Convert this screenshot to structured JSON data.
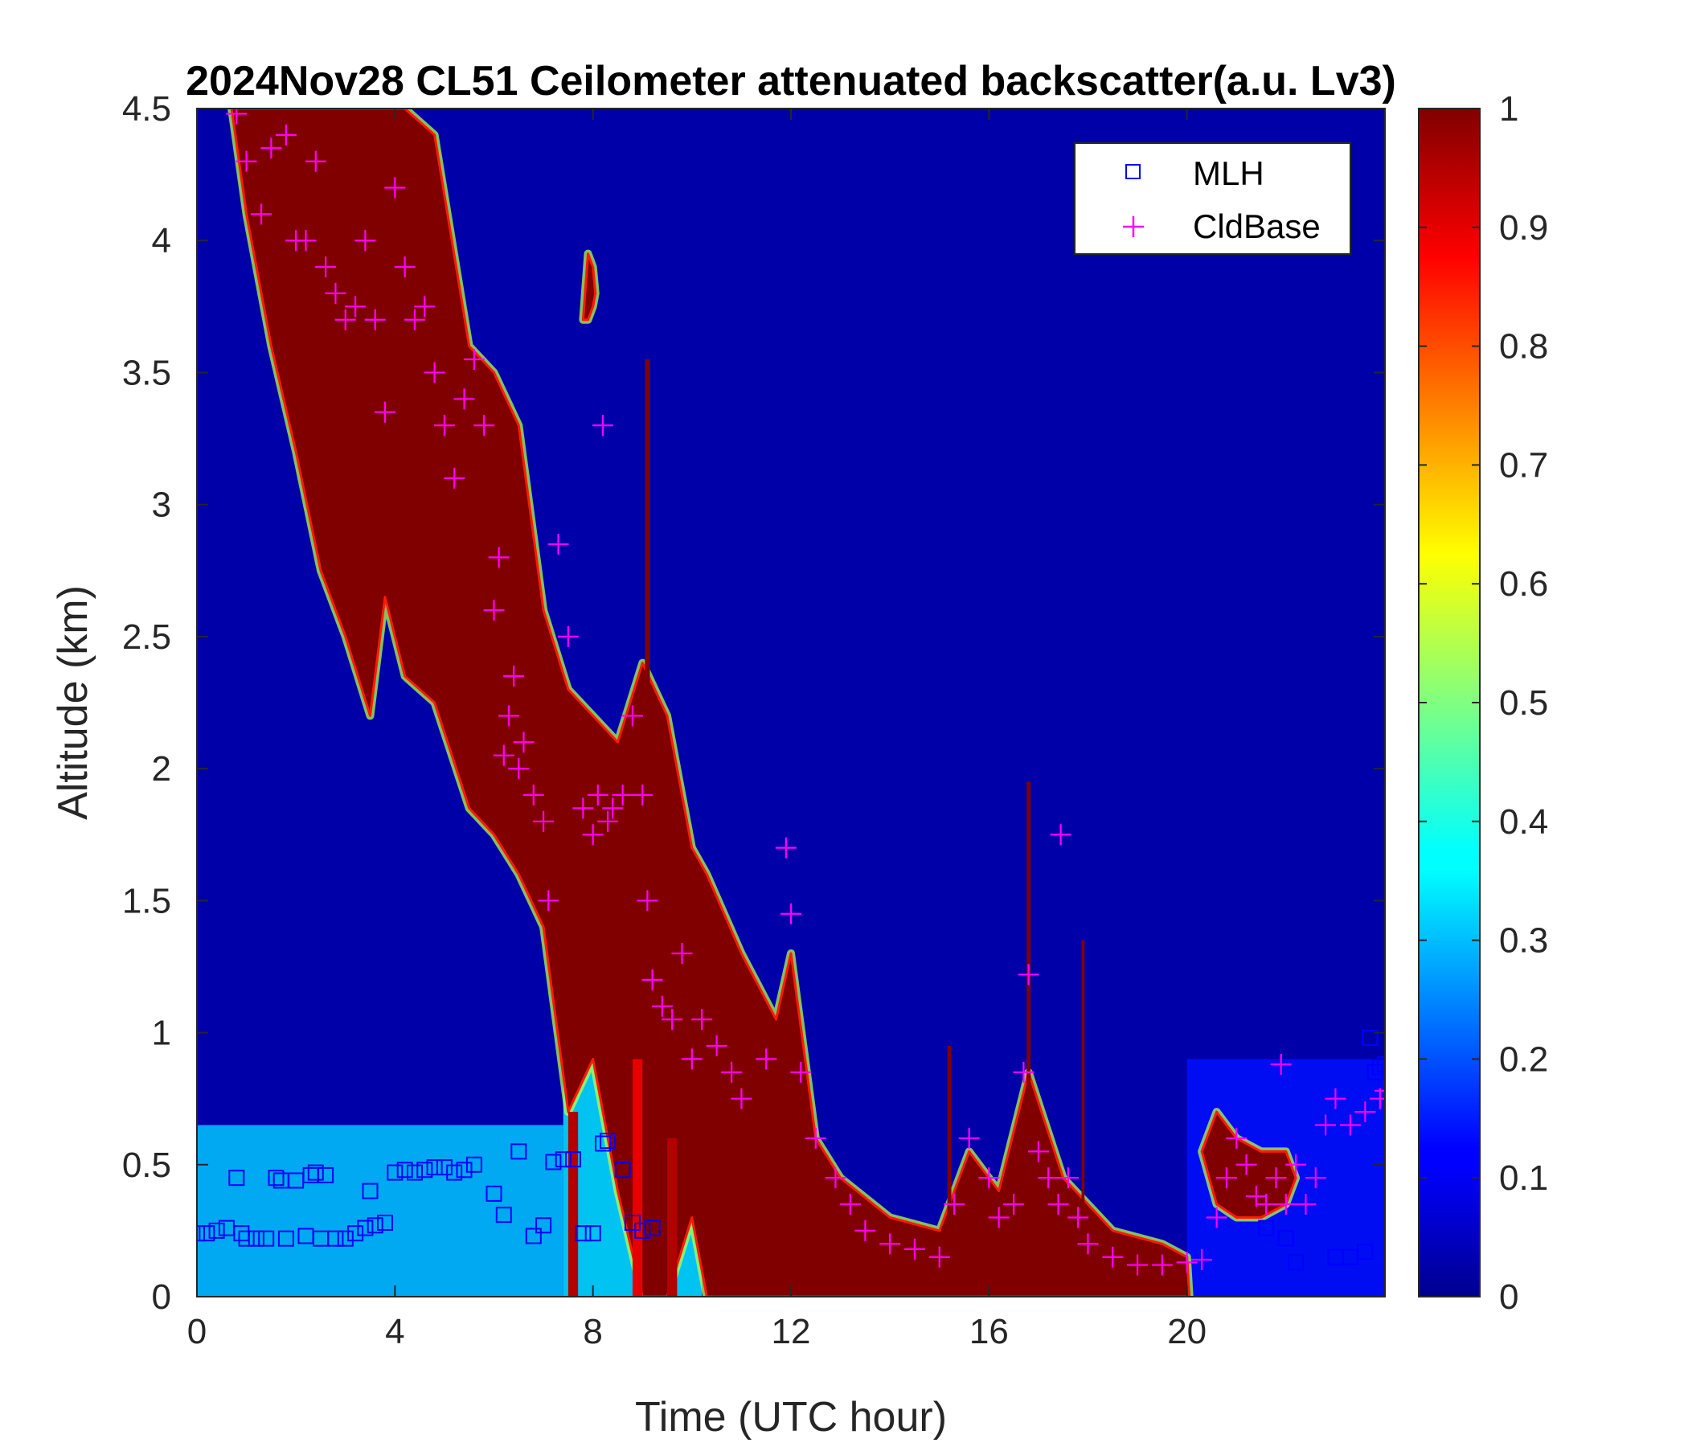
{
  "chart_data": {
    "type": "heatmap",
    "title": "2024Nov28 CL51 Ceilometer attenuated backscatter(a.u. Lv3)",
    "xlabel": "Time (UTC hour)",
    "ylabel": "Altitude (km)",
    "xlim": [
      0,
      24
    ],
    "ylim": [
      0,
      4.5
    ],
    "xticks": [
      0,
      4,
      8,
      12,
      16,
      20
    ],
    "xtick_labels": [
      "0",
      "4",
      "8",
      "12",
      "16",
      "20"
    ],
    "yticks": [
      0,
      0.5,
      1,
      1.5,
      2,
      2.5,
      3,
      3.5,
      4,
      4.5
    ],
    "ytick_labels": [
      "0",
      "0.5",
      "1",
      "1.5",
      "2",
      "2.5",
      "3",
      "3.5",
      "4",
      "4.5"
    ],
    "colorbar": {
      "colormap": "jet",
      "range": [
        0,
        1
      ],
      "ticks": [
        0,
        0.1,
        0.2,
        0.3,
        0.4,
        0.5,
        0.6,
        0.7,
        0.8,
        0.9,
        1
      ],
      "tick_labels": [
        "0",
        "0.1",
        "0.2",
        "0.3",
        "0.4",
        "0.5",
        "0.6",
        "0.7",
        "0.8",
        "0.9",
        "1"
      ]
    },
    "legend": {
      "location": "top-right",
      "entries": [
        {
          "label": "MLH",
          "marker": "square",
          "color": "#0000ff"
        },
        {
          "label": "CldBase",
          "marker": "plus",
          "color": "#ff00ff"
        }
      ]
    },
    "background_value": 0.04,
    "features": [
      {
        "kind": "aerosol_layer",
        "t0": 0,
        "t1": 7.4,
        "z0": 0,
        "z1": 0.65,
        "value": 0.32
      },
      {
        "kind": "aerosol_layer",
        "t0": 7.4,
        "t1": 10.2,
        "z0": 0,
        "z1": 1.1,
        "value": 0.35
      },
      {
        "kind": "aerosol_layer",
        "t0": 20.0,
        "t1": 24,
        "z0": 0,
        "z1": 0.9,
        "value": 0.14
      },
      {
        "kind": "cloud_band",
        "value": 1.0,
        "points": [
          {
            "t": 0.7,
            "lo": 4.5,
            "hi": 4.5
          },
          {
            "t": 1.0,
            "lo": 4.1,
            "hi": 4.5
          },
          {
            "t": 1.5,
            "lo": 3.6,
            "hi": 4.5
          },
          {
            "t": 2.0,
            "lo": 3.2,
            "hi": 4.5
          },
          {
            "t": 2.5,
            "lo": 2.75,
            "hi": 4.5
          },
          {
            "t": 3.0,
            "lo": 2.5,
            "hi": 4.5
          },
          {
            "t": 3.5,
            "lo": 2.2,
            "hi": 4.5
          },
          {
            "t": 3.8,
            "lo": 2.65,
            "hi": 4.5
          },
          {
            "t": 4.2,
            "lo": 2.35,
            "hi": 4.5
          },
          {
            "t": 4.8,
            "lo": 2.25,
            "hi": 4.4
          },
          {
            "t": 5.5,
            "lo": 1.85,
            "hi": 3.6
          },
          {
            "t": 6.0,
            "lo": 1.75,
            "hi": 3.5
          },
          {
            "t": 6.5,
            "lo": 1.6,
            "hi": 3.3
          },
          {
            "t": 7.0,
            "lo": 1.4,
            "hi": 2.6
          },
          {
            "t": 7.5,
            "lo": 0.7,
            "hi": 2.3
          },
          {
            "t": 8.0,
            "lo": 0.9,
            "hi": 2.2
          },
          {
            "t": 8.5,
            "lo": 0.4,
            "hi": 2.1
          },
          {
            "t": 9.0,
            "lo": 0.0,
            "hi": 2.4
          },
          {
            "t": 9.5,
            "lo": 0.0,
            "hi": 2.2
          },
          {
            "t": 10.0,
            "lo": 0.3,
            "hi": 1.7
          },
          {
            "t": 10.3,
            "lo": 0.0,
            "hi": 1.6
          },
          {
            "t": 11.0,
            "lo": 0.0,
            "hi": 1.3
          },
          {
            "t": 11.7,
            "lo": 0.0,
            "hi": 1.05
          },
          {
            "t": 12.0,
            "lo": 0.0,
            "hi": 1.3
          },
          {
            "t": 12.5,
            "lo": 0.0,
            "hi": 0.6
          },
          {
            "t": 13.0,
            "lo": 0.0,
            "hi": 0.45
          },
          {
            "t": 14.0,
            "lo": 0.0,
            "hi": 0.3
          },
          {
            "t": 15.0,
            "lo": 0.0,
            "hi": 0.25
          },
          {
            "t": 15.6,
            "lo": 0.0,
            "hi": 0.55
          },
          {
            "t": 16.2,
            "lo": 0.0,
            "hi": 0.4
          },
          {
            "t": 16.8,
            "lo": 0.0,
            "hi": 0.85
          },
          {
            "t": 17.5,
            "lo": 0.0,
            "hi": 0.45
          },
          {
            "t": 18.5,
            "lo": 0.0,
            "hi": 0.25
          },
          {
            "t": 19.5,
            "lo": 0.0,
            "hi": 0.2
          },
          {
            "t": 20.0,
            "lo": 0.0,
            "hi": 0.15
          },
          {
            "t": 20.05,
            "lo": 0.0,
            "hi": 0.0
          }
        ]
      },
      {
        "kind": "cloud_band",
        "value": 1.0,
        "points": [
          {
            "t": 7.8,
            "lo": 3.7,
            "hi": 3.7
          },
          {
            "t": 7.9,
            "lo": 3.7,
            "hi": 3.95
          },
          {
            "t": 8.0,
            "lo": 3.75,
            "hi": 3.9
          },
          {
            "t": 8.05,
            "lo": 3.8,
            "hi": 3.8
          }
        ]
      },
      {
        "kind": "cloud_band",
        "value": 1.0,
        "points": [
          {
            "t": 20.3,
            "lo": 0.55,
            "hi": 0.55
          },
          {
            "t": 20.6,
            "lo": 0.35,
            "hi": 0.7
          },
          {
            "t": 21.0,
            "lo": 0.3,
            "hi": 0.6
          },
          {
            "t": 21.5,
            "lo": 0.3,
            "hi": 0.55
          },
          {
            "t": 22.0,
            "lo": 0.35,
            "hi": 0.55
          },
          {
            "t": 22.2,
            "lo": 0.45,
            "hi": 0.45
          }
        ]
      },
      {
        "kind": "spike",
        "t": 16.8,
        "z0": 0.3,
        "z1": 1.95,
        "width": 0.08,
        "value": 1.0
      },
      {
        "kind": "spike",
        "t": 15.2,
        "z0": 0.2,
        "z1": 0.95,
        "width": 0.08,
        "value": 1.0
      },
      {
        "kind": "spike",
        "t": 17.9,
        "z0": 0.2,
        "z1": 1.35,
        "width": 0.06,
        "value": 1.0
      },
      {
        "kind": "spike",
        "t": 9.1,
        "z0": 2.2,
        "z1": 3.55,
        "width": 0.1,
        "value": 1.0
      },
      {
        "kind": "spike",
        "t": 7.6,
        "z0": 0.0,
        "z1": 0.7,
        "width": 0.2,
        "value": 0.95
      },
      {
        "kind": "spike",
        "t": 8.9,
        "z0": 0.0,
        "z1": 0.9,
        "width": 0.2,
        "value": 0.9
      },
      {
        "kind": "spike",
        "t": 9.6,
        "z0": 0.0,
        "z1": 0.6,
        "width": 0.2,
        "value": 0.95
      }
    ],
    "series": [
      {
        "name": "MLH",
        "marker": "square",
        "color": "#0000ff",
        "x": [
          0.0,
          0.2,
          0.4,
          0.6,
          0.8,
          0.9,
          1.0,
          1.2,
          1.4,
          1.6,
          1.7,
          1.8,
          2.0,
          2.2,
          2.3,
          2.4,
          2.5,
          2.6,
          2.8,
          3.0,
          3.2,
          3.4,
          3.5,
          3.6,
          3.8,
          4.0,
          4.2,
          4.4,
          4.6,
          4.8,
          5.0,
          5.2,
          5.4,
          5.6,
          6.0,
          6.2,
          6.5,
          6.8,
          7.0,
          7.2,
          7.4,
          7.6,
          7.8,
          8.0,
          8.2,
          8.3,
          8.6,
          8.8,
          9.0,
          9.2,
          21.6,
          22.0,
          22.2,
          23.0,
          23.3,
          23.6,
          23.8,
          23.9,
          24.0,
          23.7
        ],
        "y": [
          0.24,
          0.24,
          0.25,
          0.26,
          0.45,
          0.24,
          0.22,
          0.22,
          0.22,
          0.45,
          0.44,
          0.22,
          0.44,
          0.23,
          0.46,
          0.47,
          0.22,
          0.46,
          0.22,
          0.22,
          0.24,
          0.26,
          0.4,
          0.27,
          0.28,
          0.47,
          0.48,
          0.47,
          0.48,
          0.49,
          0.49,
          0.47,
          0.48,
          0.5,
          0.39,
          0.31,
          0.55,
          0.23,
          0.27,
          0.51,
          0.52,
          0.52,
          0.24,
          0.24,
          0.58,
          0.59,
          0.48,
          0.28,
          0.25,
          0.26,
          0.26,
          0.22,
          0.13,
          0.15,
          0.15,
          0.17,
          0.85,
          0.87,
          0.88,
          0.98
        ]
      },
      {
        "name": "CldBase",
        "marker": "plus",
        "color": "#ff00ff",
        "x": [
          0.8,
          1.0,
          1.3,
          1.5,
          1.8,
          2.0,
          2.2,
          2.4,
          2.6,
          2.8,
          3.0,
          3.2,
          3.4,
          3.6,
          3.8,
          4.0,
          4.2,
          4.4,
          4.6,
          4.8,
          5.0,
          5.2,
          5.4,
          5.6,
          5.8,
          6.0,
          6.1,
          6.2,
          6.3,
          6.4,
          6.5,
          6.6,
          6.8,
          7.0,
          7.1,
          7.3,
          7.5,
          7.8,
          8.0,
          8.1,
          8.2,
          8.3,
          8.4,
          8.6,
          8.8,
          9.0,
          9.1,
          9.2,
          9.4,
          9.6,
          9.8,
          10.0,
          10.2,
          10.5,
          10.8,
          11.0,
          11.5,
          11.9,
          12.0,
          12.2,
          12.5,
          12.9,
          13.2,
          13.5,
          14.0,
          14.5,
          15.0,
          15.3,
          15.6,
          16.0,
          16.2,
          16.5,
          16.7,
          16.8,
          17.0,
          17.2,
          17.4,
          17.45,
          17.6,
          17.8,
          18.0,
          18.5,
          19.0,
          19.5,
          20.0,
          20.3,
          20.6,
          20.8,
          21.0,
          21.2,
          21.4,
          21.6,
          21.8,
          21.9,
          22.0,
          22.2,
          22.4,
          22.6,
          22.8,
          23.0,
          23.3,
          23.6,
          23.9,
          24.0
        ],
        "y": [
          4.48,
          4.3,
          4.1,
          4.35,
          4.4,
          4.0,
          4.0,
          4.3,
          3.9,
          3.8,
          3.7,
          3.75,
          4.0,
          3.7,
          3.35,
          4.2,
          3.9,
          3.7,
          3.75,
          3.5,
          3.3,
          3.1,
          3.4,
          3.55,
          3.3,
          2.6,
          2.8,
          2.05,
          2.2,
          2.35,
          2.0,
          2.1,
          1.9,
          1.8,
          1.5,
          2.85,
          2.5,
          1.85,
          1.75,
          1.9,
          3.3,
          1.8,
          1.85,
          1.9,
          2.2,
          1.9,
          1.5,
          1.2,
          1.1,
          1.05,
          1.3,
          0.9,
          1.05,
          0.95,
          0.85,
          0.75,
          0.9,
          1.7,
          1.45,
          0.85,
          0.6,
          0.45,
          0.35,
          0.25,
          0.2,
          0.18,
          0.15,
          0.35,
          0.6,
          0.45,
          0.3,
          0.35,
          0.85,
          1.22,
          0.55,
          0.45,
          0.35,
          1.75,
          0.45,
          0.3,
          0.2,
          0.15,
          0.12,
          0.12,
          0.13,
          0.14,
          0.3,
          0.45,
          0.6,
          0.5,
          0.38,
          0.35,
          0.45,
          0.88,
          0.35,
          0.5,
          0.35,
          0.45,
          0.65,
          0.75,
          0.65,
          0.7,
          0.75,
          0.78
        ]
      }
    ]
  }
}
